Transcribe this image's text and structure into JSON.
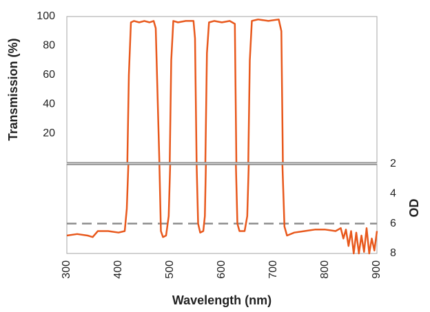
{
  "chart_data": [
    {
      "type": "line",
      "ylabel": "Transmission (%)",
      "xlim": [
        300,
        900
      ],
      "ylim": [
        0,
        100
      ],
      "yticks": [
        20,
        40,
        60,
        80,
        100
      ],
      "x": [
        417,
        420,
        424,
        430,
        440,
        450,
        460,
        468,
        472,
        476,
        479,
        490,
        499,
        502,
        506,
        515,
        530,
        545,
        548,
        551,
        560,
        568,
        571,
        575,
        585,
        600,
        615,
        625,
        628,
        640,
        651,
        654,
        658,
        670,
        690,
        710,
        715,
        718
      ],
      "series": [
        {
          "color": "#e8581c",
          "values": [
            0,
            60,
            96,
            97,
            96,
            97,
            96,
            97,
            92,
            40,
            0,
            null,
            0,
            70,
            97,
            96,
            97,
            97,
            85,
            0,
            null,
            0,
            75,
            96,
            97,
            96,
            97,
            95,
            0,
            null,
            0,
            70,
            97,
            98,
            97,
            98,
            90,
            0
          ]
        }
      ]
    },
    {
      "type": "line",
      "ylabel": "OD",
      "xlabel": "Wavelength (nm)",
      "xlim": [
        300,
        900
      ],
      "xticks": [
        300,
        400,
        500,
        600,
        700,
        800,
        900
      ],
      "ylim": [
        8,
        2
      ],
      "yticks": [
        2,
        4,
        6,
        8
      ],
      "hline": 6,
      "hline_color": "#8c8c8c",
      "x": [
        300,
        320,
        340,
        350,
        360,
        380,
        400,
        412,
        416,
        419,
        450,
        479,
        482,
        486,
        492,
        497,
        500,
        525,
        551,
        554,
        558,
        564,
        567,
        569,
        600,
        627,
        630,
        634,
        644,
        649,
        652,
        680,
        717,
        721,
        726,
        740,
        760,
        780,
        800,
        820,
        830,
        835,
        840,
        845,
        850,
        855,
        860,
        865,
        870,
        875,
        880,
        885,
        890,
        895,
        900
      ],
      "series": [
        {
          "color": "#e8581c",
          "values": [
            6.8,
            6.7,
            6.8,
            6.9,
            6.5,
            6.5,
            6.6,
            6.5,
            5,
            2,
            null,
            2,
            6.5,
            6.9,
            6.8,
            5.5,
            2,
            null,
            2,
            6,
            6.6,
            6.5,
            5.5,
            2,
            null,
            2,
            6,
            6.5,
            6.5,
            5.5,
            2,
            null,
            2,
            6.2,
            6.8,
            6.6,
            6.5,
            6.4,
            6.4,
            6.5,
            6.3,
            7,
            6.4,
            7.5,
            6.5,
            8,
            6.6,
            8,
            6.8,
            7.9,
            6.3,
            8,
            7,
            7.8,
            6.5
          ]
        }
      ]
    }
  ]
}
